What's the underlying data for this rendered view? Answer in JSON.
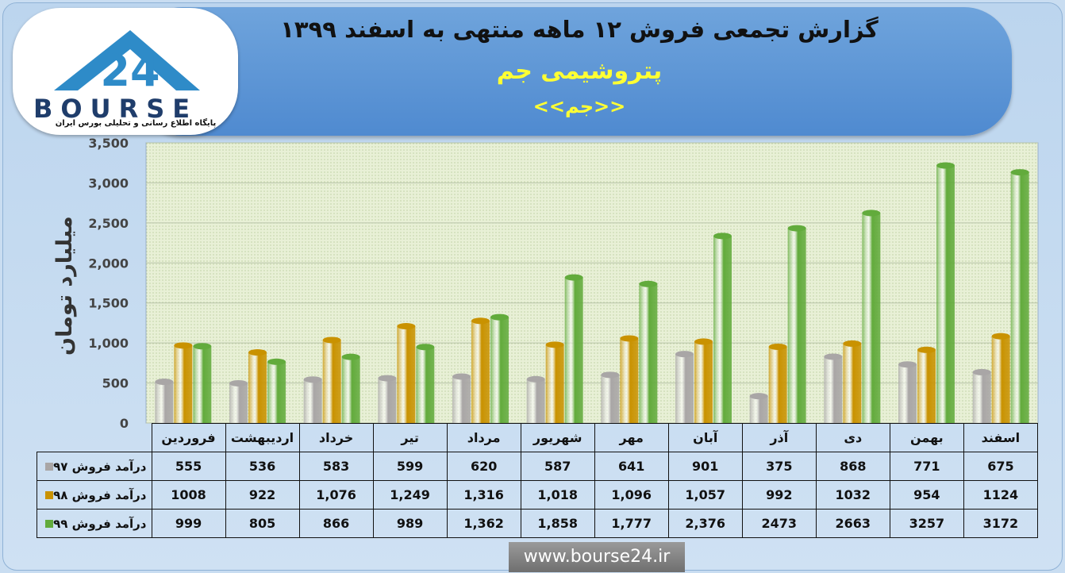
{
  "header": {
    "title": "گزارش تجمعی فروش ۱۲ ماهه منتهی به اسفند ۱۳۹۹",
    "company": "پتروشیمی جم",
    "symbol": "<<جم>>"
  },
  "logo": {
    "mark": "24",
    "name": "BOURSE",
    "tagline": "پایگاه اطلاع رسانی و تحلیلی بورس ایران"
  },
  "footer": {
    "url": "www.bourse24.ir"
  },
  "colors": {
    "s97": "#a9a6a6",
    "s98": "#c99200",
    "s99": "#62ab3c",
    "plot_bg": "#e8f0d6"
  },
  "chart_data": {
    "type": "bar",
    "ylabel": "میلیارد تومان",
    "ylim": [
      0,
      3500
    ],
    "yticks": [
      "0",
      "500",
      "1,000",
      "1,500",
      "2,000",
      "2,500",
      "3,000",
      "3,500"
    ],
    "ytick_values": [
      0,
      500,
      1000,
      1500,
      2000,
      2500,
      3000,
      3500
    ],
    "categories": [
      "فروردین",
      "اردیبهشت",
      "خرداد",
      "تیر",
      "مرداد",
      "شهریور",
      "مهر",
      "آبان",
      "آذر",
      "دی",
      "بهمن",
      "اسفند"
    ],
    "series": [
      {
        "name": "درآمد فروش ۹۷",
        "values": [
          555,
          536,
          583,
          599,
          620,
          587,
          641,
          901,
          375,
          868,
          771,
          675
        ],
        "labels": [
          "555",
          "536",
          "583",
          "599",
          "620",
          "587",
          "641",
          "901",
          "375",
          "868",
          "771",
          "675"
        ]
      },
      {
        "name": "درآمد فروش ۹۸",
        "values": [
          1008,
          922,
          1076,
          1249,
          1316,
          1018,
          1096,
          1057,
          992,
          1032,
          954,
          1124
        ],
        "labels": [
          "1008",
          "922",
          "1,076",
          "1,249",
          "1,316",
          "1,018",
          "1,096",
          "1,057",
          "992",
          "1032",
          "954",
          "1124"
        ]
      },
      {
        "name": "درآمد فروش ۹۹",
        "values": [
          999,
          805,
          866,
          989,
          1362,
          1858,
          1777,
          2376,
          2473,
          2663,
          3257,
          3172
        ],
        "labels": [
          "999",
          "805",
          "866",
          "989",
          "1,362",
          "1,858",
          "1,777",
          "2,376",
          "2473",
          "2663",
          "3257",
          "3172"
        ]
      }
    ],
    "legend": "table-rows"
  }
}
